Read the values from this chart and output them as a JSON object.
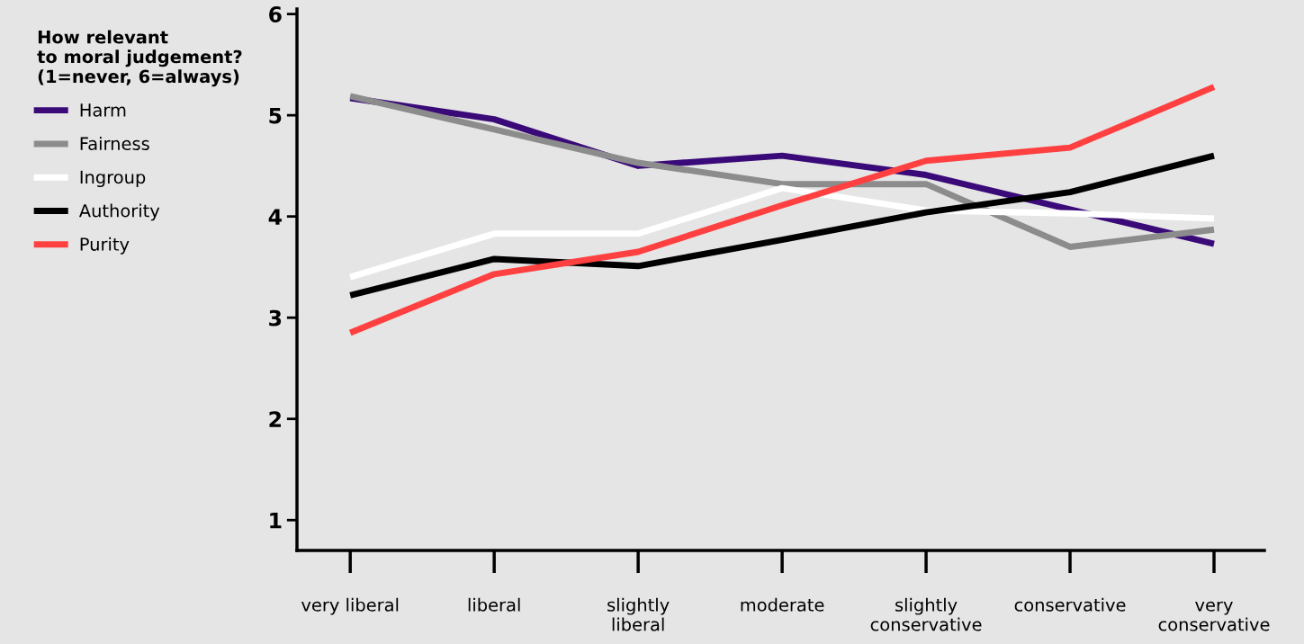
{
  "chart_data": {
    "type": "line",
    "categories": [
      "very liberal",
      "liberal",
      "slightly\nliberal",
      "moderate",
      "slightly\nconservative",
      "conservative",
      "very\nconservative"
    ],
    "series": [
      {
        "name": "Harm",
        "color": "#3a0a78",
        "values": [
          5.17,
          4.96,
          4.5,
          4.6,
          4.41,
          4.07,
          3.73
        ]
      },
      {
        "name": "Fairness",
        "color": "#8c8c8c",
        "values": [
          5.19,
          4.86,
          4.53,
          4.32,
          4.32,
          3.7,
          3.87
        ]
      },
      {
        "name": "Ingroup",
        "color": "#ffffff",
        "values": [
          3.4,
          3.83,
          3.83,
          4.28,
          4.06,
          4.03,
          3.98
        ]
      },
      {
        "name": "Authority",
        "color": "#000000",
        "values": [
          3.22,
          3.58,
          3.51,
          3.77,
          4.04,
          4.24,
          4.6
        ]
      },
      {
        "name": "Purity",
        "color": "#ff4040",
        "values": [
          2.85,
          3.43,
          3.65,
          4.11,
          4.55,
          4.68,
          5.28
        ]
      }
    ],
    "legend_title": "How relevant\nto moral judgement?\n(1=never, 6=always)",
    "legend": "left",
    "ylim": [
      0.7,
      6.05
    ],
    "yticks": [
      1,
      2,
      3,
      4,
      5,
      6
    ],
    "grid": false,
    "marker": "none",
    "line_style": "solid"
  }
}
